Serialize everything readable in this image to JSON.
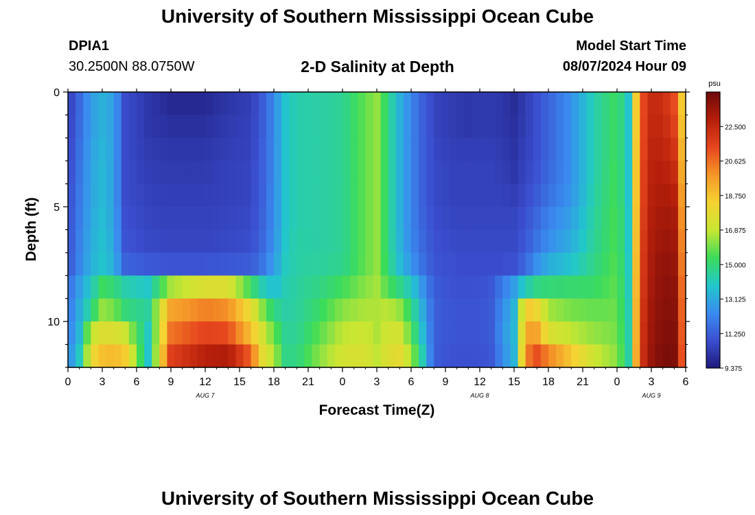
{
  "header": {
    "title": "University of Southern Mississippi Ocean Cube",
    "station_id": "DPIA1",
    "station_coords": "30.2500N  88.0750W",
    "plot_title": "2-D Salinity at Depth",
    "model_start_label": "Model Start Time",
    "model_start_value": "08/07/2024 Hour 09"
  },
  "footer": {
    "title": "University of Southern Mississippi Ocean Cube"
  },
  "colors": {
    "colormap": [
      "#1e1a7a",
      "#3b4fd0",
      "#3a8cf0",
      "#22c7cc",
      "#3cdc5a",
      "#c8e632",
      "#f5d232",
      "#f59628",
      "#e6461e",
      "#b41e0a",
      "#6e0a0a"
    ]
  },
  "chart_data": {
    "type": "heatmap",
    "title": "2-D Salinity at Depth",
    "xlabel": "Forecast Time(Z)",
    "ylabel": "Depth (ft)",
    "xlim": [
      0,
      54
    ],
    "ylim": [
      0,
      12
    ],
    "x_ticks": [
      0,
      3,
      6,
      9,
      12,
      15,
      18,
      21,
      24,
      27,
      30,
      33,
      36,
      39,
      42,
      45,
      48,
      51,
      54
    ],
    "x_tick_labels": [
      "0",
      "3",
      "6",
      "9",
      "12",
      "15",
      "18",
      "21",
      "0",
      "3",
      "6",
      "9",
      "12",
      "15",
      "18",
      "21",
      "0",
      "3",
      "6"
    ],
    "date_labels": [
      {
        "x": 12,
        "text": "AUG 7"
      },
      {
        "x": 36,
        "text": "AUG 8"
      },
      {
        "x": 51,
        "text": "AUG 9"
      }
    ],
    "y_ticks": [
      0,
      5,
      10
    ],
    "y_tick_labels": [
      "0",
      "5",
      "10"
    ],
    "colorbar": {
      "unit": "psu",
      "min": 9.375,
      "max": 24.375,
      "ticks": [
        "9.375",
        "11.250",
        "13.125",
        "15.000",
        "16.875",
        "18.750",
        "20.625",
        "22.500"
      ]
    },
    "depth_rows_ft": [
      0.5,
      1.5,
      2.5,
      3.5,
      4.5,
      5.5,
      6.5,
      7.5,
      8.5,
      9.5,
      10.5,
      11.5
    ],
    "time_keyframes_hr": [
      0,
      1,
      2,
      3,
      4,
      5,
      7,
      9,
      12,
      14,
      16,
      17,
      18,
      19,
      20,
      22,
      24,
      26,
      27,
      28,
      29,
      30,
      31,
      32,
      33,
      34,
      35,
      36,
      37,
      38,
      39,
      40,
      41,
      42,
      44,
      46,
      48,
      49,
      50,
      51,
      52,
      53,
      54
    ],
    "salinity_psu": [
      [
        10.3,
        11.5,
        12.8,
        13.3,
        12.9,
        10.8,
        10.2,
        9.8,
        9.8,
        10.2,
        10.4,
        11.2,
        12.3,
        13.8,
        14.3,
        14.4,
        14.6,
        15.8,
        16.3,
        14.8,
        13.3,
        12.2,
        11.3,
        10.6,
        10.4,
        10.3,
        10.2,
        10.3,
        10.3,
        10.2,
        9.9,
        10.4,
        10.9,
        11.4,
        12.5,
        14.3,
        15.4,
        13.8,
        20.9,
        22.4,
        22.3,
        21.3,
        17.2
      ],
      [
        10.4,
        11.6,
        12.8,
        13.3,
        12.9,
        10.8,
        10.2,
        10.0,
        10.0,
        10.3,
        10.5,
        11.2,
        12.3,
        13.8,
        14.3,
        14.4,
        14.6,
        15.8,
        16.3,
        14.8,
        13.3,
        12.2,
        11.3,
        10.6,
        10.4,
        10.3,
        10.2,
        10.3,
        10.3,
        10.2,
        10.0,
        10.4,
        10.9,
        11.4,
        12.5,
        14.3,
        15.4,
        13.8,
        20.9,
        22.5,
        22.5,
        21.6,
        17.4
      ],
      [
        10.5,
        11.7,
        12.9,
        13.4,
        12.9,
        10.8,
        10.3,
        10.2,
        10.2,
        10.4,
        10.5,
        11.3,
        12.3,
        13.8,
        14.3,
        14.4,
        14.6,
        15.8,
        16.3,
        14.8,
        13.3,
        12.2,
        11.3,
        10.7,
        10.5,
        10.4,
        10.4,
        10.4,
        10.4,
        10.3,
        10.1,
        10.5,
        10.9,
        11.4,
        12.5,
        14.3,
        15.4,
        13.8,
        21.0,
        22.6,
        22.7,
        22.0,
        17.7
      ],
      [
        10.6,
        11.8,
        13.0,
        13.5,
        12.9,
        10.8,
        10.4,
        10.3,
        10.3,
        10.5,
        10.6,
        11.3,
        12.3,
        13.8,
        14.3,
        14.4,
        14.6,
        15.8,
        16.3,
        14.8,
        13.3,
        12.2,
        11.3,
        10.7,
        10.6,
        10.5,
        10.5,
        10.5,
        10.5,
        10.4,
        10.2,
        10.6,
        11.0,
        11.5,
        12.5,
        14.3,
        15.5,
        13.8,
        21.1,
        22.7,
        22.9,
        22.4,
        17.9
      ],
      [
        10.7,
        11.9,
        13.0,
        13.5,
        12.9,
        10.8,
        10.5,
        10.4,
        10.4,
        10.5,
        10.6,
        11.3,
        12.4,
        13.8,
        14.3,
        14.4,
        14.6,
        15.8,
        16.3,
        14.8,
        13.3,
        12.2,
        11.3,
        10.7,
        10.6,
        10.5,
        10.5,
        10.5,
        10.5,
        10.5,
        10.4,
        10.7,
        11.2,
        11.7,
        12.6,
        14.4,
        15.5,
        13.8,
        21.1,
        22.8,
        23.1,
        22.8,
        18.2
      ],
      [
        10.8,
        12.0,
        13.1,
        13.6,
        13.0,
        10.9,
        10.6,
        10.5,
        10.5,
        10.6,
        10.7,
        11.4,
        12.4,
        13.8,
        14.3,
        14.4,
        14.6,
        15.8,
        16.3,
        14.8,
        13.3,
        12.2,
        11.4,
        10.8,
        10.7,
        10.6,
        10.6,
        10.6,
        10.6,
        10.6,
        10.6,
        10.9,
        11.5,
        12.1,
        12.9,
        14.5,
        15.6,
        13.9,
        21.2,
        22.9,
        23.3,
        23.1,
        18.4
      ],
      [
        10.9,
        12.1,
        13.2,
        13.7,
        13.1,
        11.0,
        10.7,
        10.6,
        10.6,
        10.7,
        10.8,
        11.5,
        12.5,
        13.9,
        14.4,
        14.4,
        14.6,
        15.8,
        16.3,
        14.8,
        13.4,
        12.3,
        11.5,
        10.9,
        10.8,
        10.7,
        10.7,
        10.7,
        10.7,
        10.7,
        10.7,
        11.1,
        11.8,
        12.4,
        13.2,
        14.6,
        15.6,
        13.9,
        21.3,
        23.0,
        23.5,
        23.3,
        18.7
      ],
      [
        11.0,
        12.2,
        13.3,
        13.8,
        13.3,
        11.4,
        11.1,
        11.0,
        11.0,
        11.1,
        11.2,
        11.8,
        12.8,
        14.0,
        14.4,
        14.5,
        14.7,
        15.8,
        16.3,
        14.9,
        13.6,
        12.6,
        11.7,
        11.0,
        10.9,
        10.8,
        10.8,
        10.8,
        10.8,
        10.8,
        10.9,
        11.5,
        12.5,
        13.2,
        13.8,
        14.8,
        15.7,
        14.0,
        21.4,
        23.1,
        23.7,
        23.5,
        18.9
      ],
      [
        11.6,
        12.8,
        14.0,
        15.3,
        15.0,
        14.3,
        13.9,
        16.5,
        17.5,
        17.5,
        15.3,
        14.2,
        13.6,
        14.2,
        14.5,
        14.8,
        15.4,
        16.2,
        16.5,
        15.5,
        14.8,
        14.0,
        12.6,
        11.2,
        11.0,
        10.9,
        10.9,
        10.9,
        11.1,
        12.0,
        12.8,
        14.2,
        14.8,
        15.0,
        15.1,
        15.2,
        15.8,
        14.1,
        21.5,
        23.2,
        23.8,
        23.7,
        19.2
      ],
      [
        11.8,
        13.2,
        14.7,
        16.3,
        16.0,
        15.0,
        14.5,
        19.5,
        20.3,
        20.0,
        17.8,
        16.2,
        14.8,
        14.4,
        14.5,
        15.2,
        16.2,
        16.6,
        16.6,
        16.8,
        16.3,
        15.0,
        13.2,
        11.3,
        11.1,
        11.0,
        11.0,
        11.0,
        11.2,
        12.4,
        13.4,
        18.8,
        18.0,
        16.5,
        16.0,
        15.8,
        15.9,
        14.2,
        21.6,
        23.3,
        23.9,
        23.8,
        19.4
      ],
      [
        12.0,
        13.5,
        16.8,
        17.5,
        17.5,
        17.0,
        14.0,
        20.5,
        21.5,
        21.3,
        18.8,
        17.3,
        15.8,
        14.6,
        14.6,
        15.7,
        16.8,
        17.0,
        16.6,
        17.2,
        17.2,
        15.7,
        13.6,
        11.3,
        11.1,
        11.0,
        11.0,
        11.0,
        11.2,
        12.6,
        13.5,
        19.6,
        19.5,
        17.5,
        16.8,
        16.3,
        16.0,
        14.3,
        21.7,
        23.4,
        24.0,
        23.9,
        19.6
      ],
      [
        12.2,
        14.0,
        17.8,
        18.8,
        19.0,
        18.5,
        13.8,
        21.6,
        22.8,
        23.0,
        20.8,
        17.8,
        16.6,
        14.8,
        14.8,
        16.2,
        17.2,
        17.4,
        16.8,
        17.5,
        17.8,
        16.5,
        14.2,
        11.2,
        11.0,
        10.9,
        10.9,
        10.9,
        11.1,
        12.4,
        13.4,
        20.2,
        21.2,
        20.2,
        18.6,
        17.0,
        16.2,
        14.4,
        21.8,
        23.5,
        24.1,
        24.0,
        19.8
      ]
    ]
  }
}
